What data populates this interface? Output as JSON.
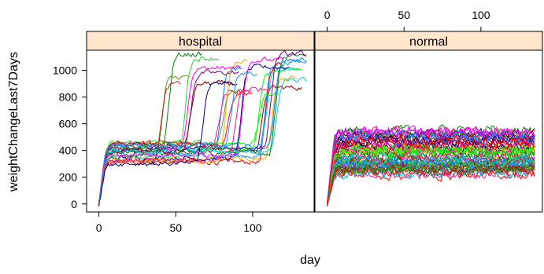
{
  "chart_data": {
    "type": "line",
    "xlabel": "day",
    "ylabel": "weightChangeLast7Days",
    "x_ticks": [
      "0",
      "50",
      "100"
    ],
    "x_tick_values": [
      0,
      50,
      100
    ],
    "y_ticks": [
      "0",
      "200",
      "400",
      "600",
      "800",
      "1000"
    ],
    "y_tick_values": [
      0,
      200,
      400,
      600,
      800,
      1000
    ],
    "xlim": [
      -8,
      140
    ],
    "ylim": [
      -60,
      1150
    ],
    "panels": [
      {
        "name": "hospital",
        "strip_label": "hospital",
        "day_range": [
          0,
          135
        ],
        "baseline_range": [
          300,
          470
        ],
        "n_series": 28,
        "spike_level_range": [
          820,
          1130
        ],
        "spike_onset_range": [
          28,
          112
        ],
        "example_series": [
          {
            "day": [
              0,
              5,
              20,
              30,
              35,
              60
            ],
            "values": [
              20,
              380,
              420,
              880,
              900,
              880
            ]
          },
          {
            "day": [
              0,
              5,
              50,
              58,
              62,
              80
            ],
            "values": [
              10,
              400,
              350,
              900,
              960,
              1010
            ]
          },
          {
            "day": [
              0,
              5,
              80,
              85,
              95,
              100
            ],
            "values": [
              30,
              390,
              420,
              1100,
              1120,
              950
            ]
          },
          {
            "day": [
              0,
              5,
              110,
              115,
              125,
              135
            ],
            "values": [
              0,
              360,
              400,
              950,
              1130,
              880
            ]
          }
        ]
      },
      {
        "name": "normal",
        "strip_label": "normal",
        "day_range": [
          0,
          135
        ],
        "baseline_range": [
          220,
          550
        ],
        "n_series": 60,
        "spike_level_range": null,
        "spike_onset_range": null,
        "example_series": [
          {
            "day": [
              0,
              5,
              50,
              100,
              135
            ],
            "values": [
              0,
              380,
              420,
              400,
              390
            ]
          },
          {
            "day": [
              0,
              5,
              50,
              100,
              135
            ],
            "values": [
              20,
              420,
              300,
              460,
              350
            ]
          }
        ]
      }
    ],
    "series_colors": [
      "#ff00ff",
      "#00ff00",
      "#ff0000",
      "#0080ff",
      "#ffa500",
      "#008000",
      "#8b0000",
      "#00ced1",
      "#800080",
      "#ff1493",
      "#000080",
      "#6b8e23",
      "#1e90ff",
      "#b22222",
      "#32cd32"
    ],
    "strip_color": "#ffe5cc",
    "grid": false,
    "legend": "none"
  }
}
